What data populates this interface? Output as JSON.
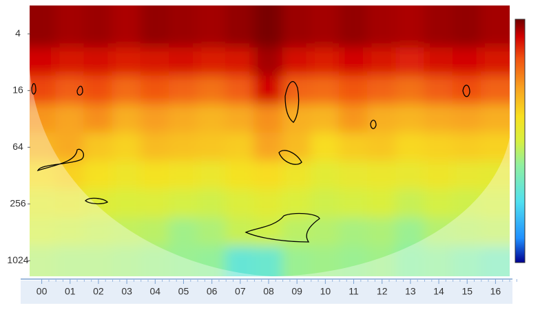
{
  "chart_data": {
    "type": "heatmap",
    "categories": [
      "00",
      "01",
      "02",
      "03",
      "04",
      "05",
      "06",
      "07",
      "08",
      "09",
      "10",
      "11",
      "12",
      "13",
      "14",
      "15",
      "16"
    ],
    "rows": [
      4,
      8,
      16,
      32,
      64,
      128,
      256,
      512,
      1024
    ],
    "ylim": [
      2,
      1500
    ],
    "log_scale": true,
    "yticks": [
      4,
      16,
      64,
      256,
      1024
    ],
    "zlim": [
      0,
      10
    ],
    "colormap": [
      "#000090",
      "#2090ff",
      "#50e0f0",
      "#90f0a0",
      "#d8f040",
      "#f8e020",
      "#f8a020",
      "#f05010",
      "#d00000",
      "#700000"
    ],
    "values": [
      [
        9.6,
        9.4,
        9.5,
        9.3,
        9.6,
        9.5,
        9.4,
        9.6,
        9.9,
        9.5,
        9.4,
        9.6,
        9.4,
        9.3,
        9.5,
        9.6,
        9.4
      ],
      [
        8.8,
        8.6,
        8.7,
        8.5,
        8.6,
        8.7,
        8.5,
        8.6,
        9.4,
        8.7,
        8.5,
        8.8,
        8.6,
        8.4,
        8.7,
        8.8,
        8.6
      ],
      [
        7.9,
        7.6,
        7.8,
        7.4,
        7.7,
        7.5,
        7.3,
        7.6,
        8.8,
        7.5,
        7.4,
        7.7,
        7.5,
        7.3,
        7.6,
        7.8,
        7.5
      ],
      [
        6.8,
        6.6,
        6.9,
        6.4,
        6.7,
        6.5,
        6.3,
        6.5,
        6.9,
        6.4,
        6.3,
        6.8,
        6.4,
        6.3,
        6.5,
        6.6,
        6.4
      ],
      [
        6.3,
        6.5,
        6.0,
        5.8,
        6.2,
        6.1,
        6.0,
        5.9,
        6.6,
        6.2,
        5.6,
        5.9,
        6.0,
        5.7,
        5.8,
        5.9,
        5.8
      ],
      [
        5.6,
        5.8,
        5.5,
        5.2,
        5.4,
        5.3,
        5.1,
        5.4,
        5.6,
        5.2,
        4.8,
        5.0,
        5.1,
        5.0,
        5.2,
        5.0,
        4.9
      ],
      [
        4.8,
        4.9,
        4.7,
        4.5,
        4.6,
        4.4,
        4.3,
        4.6,
        4.8,
        4.5,
        4.3,
        4.4,
        4.5,
        4.2,
        4.4,
        4.3,
        4.4
      ],
      [
        4.4,
        4.3,
        4.2,
        4.1,
        4.0,
        3.6,
        3.8,
        4.2,
        4.3,
        4.0,
        3.9,
        3.7,
        3.8,
        3.5,
        3.9,
        4.0,
        4.1
      ],
      [
        3.9,
        3.8,
        3.8,
        3.7,
        3.6,
        3.5,
        3.4,
        2.6,
        2.7,
        3.5,
        3.6,
        3.5,
        3.6,
        3.3,
        3.4,
        3.2,
        3.0
      ]
    ]
  }
}
